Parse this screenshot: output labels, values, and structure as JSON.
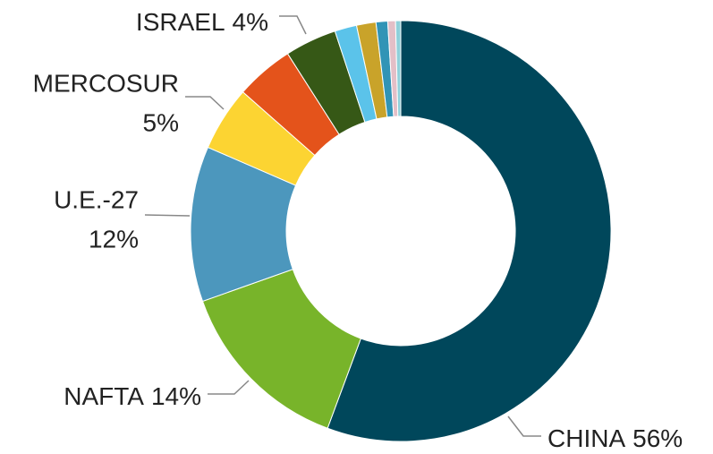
{
  "chart_data": {
    "type": "donut",
    "categories": [
      "CHINA",
      "NAFTA",
      "U.E.-27",
      "MERCOSUR",
      null,
      "ISRAEL",
      null,
      null,
      null,
      null,
      null
    ],
    "values": [
      56,
      14,
      12,
      5,
      4.5,
      4,
      1.7,
      1.5,
      0.9,
      0.6,
      0.4
    ],
    "value_labels": [
      "56%",
      "14%",
      "12%",
      "5%",
      null,
      "4%",
      null,
      null,
      null,
      null,
      null
    ],
    "colors": [
      "#00475b",
      "#78b42a",
      "#4c97bd",
      "#fcd432",
      "#e4531b",
      "#365816",
      "#5bc3ea",
      "#c9a32a",
      "#3194b6",
      "#e3bfc7",
      "#8fd0da"
    ]
  }
}
